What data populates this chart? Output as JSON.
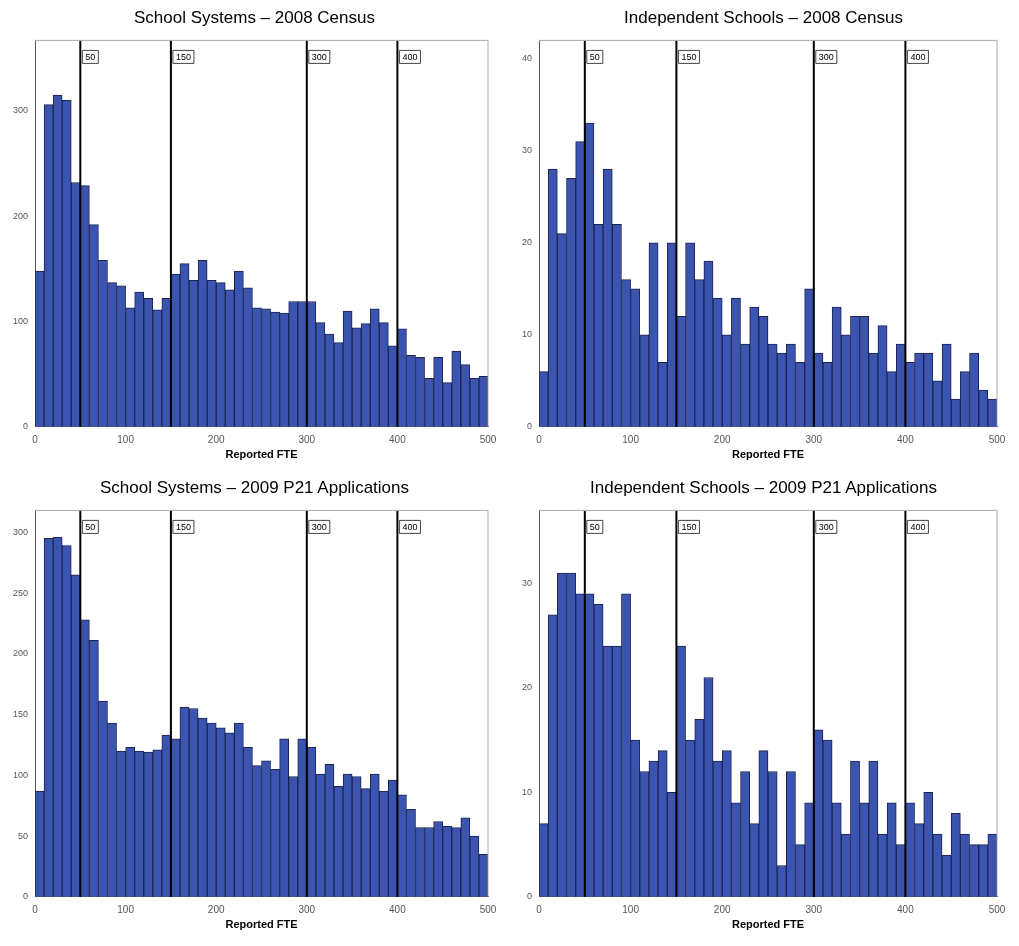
{
  "chart_data": [
    {
      "type": "histogram",
      "title": "School Systems – 2008 Census",
      "xlabel": "Reported FTE",
      "bins": [
        0,
        10,
        20,
        30,
        40,
        50,
        60,
        70,
        80,
        90,
        100,
        110,
        120,
        130,
        140,
        150,
        160,
        170,
        180,
        190,
        200,
        210,
        220,
        230,
        240,
        250,
        260,
        270,
        280,
        290,
        300,
        310,
        320,
        330,
        340,
        350,
        360,
        370,
        380,
        390,
        400,
        410,
        420,
        430,
        440,
        450,
        460,
        470,
        480,
        490,
        500
      ],
      "values": [
        148,
        306,
        315,
        310,
        232,
        229,
        192,
        158,
        137,
        134,
        113,
        128,
        122,
        111,
        122,
        145,
        155,
        139,
        158,
        139,
        137,
        130,
        148,
        132,
        113,
        112,
        109,
        108,
        119,
        119,
        119,
        99,
        88,
        80,
        110,
        94,
        98,
        112,
        99,
        77,
        93,
        68,
        66,
        46,
        66,
        42,
        72,
        59,
        46,
        48
      ],
      "color": "#3a54b0",
      "xlim": [
        0,
        500
      ],
      "xticks": [
        0,
        100,
        200,
        300,
        400,
        500
      ],
      "ylim": [
        0,
        367
      ],
      "yticks": [
        0,
        100,
        200,
        300
      ],
      "grid": false,
      "legend": false,
      "ref_lines": [
        {
          "axis": "x",
          "value": 50,
          "label": "50",
          "color": "#000000"
        },
        {
          "axis": "x",
          "value": 150,
          "label": "150",
          "color": "#000000"
        },
        {
          "axis": "x",
          "value": 300,
          "label": "300",
          "color": "#000000"
        },
        {
          "axis": "x",
          "value": 400,
          "label": "400",
          "color": "#000000"
        }
      ]
    },
    {
      "type": "histogram",
      "title": "Independent Schools – 2008 Census",
      "xlabel": "Reported FTE",
      "bins": [
        0,
        10,
        20,
        30,
        40,
        50,
        60,
        70,
        80,
        90,
        100,
        110,
        120,
        130,
        140,
        150,
        160,
        170,
        180,
        190,
        200,
        210,
        220,
        230,
        240,
        250,
        260,
        270,
        280,
        290,
        300,
        310,
        320,
        330,
        340,
        350,
        360,
        370,
        380,
        390,
        400,
        410,
        420,
        430,
        440,
        450,
        460,
        470,
        480,
        490,
        500
      ],
      "values": [
        6,
        28,
        21,
        27,
        31,
        33,
        22,
        28,
        22,
        16,
        15,
        10,
        20,
        7,
        20,
        12,
        20,
        16,
        18,
        14,
        10,
        14,
        9,
        13,
        12,
        9,
        8,
        9,
        7,
        15,
        8,
        7,
        13,
        10,
        12,
        12,
        8,
        11,
        6,
        9,
        7,
        8,
        8,
        5,
        9,
        3,
        6,
        8,
        4,
        3
      ],
      "color": "#3a54b0",
      "xlim": [
        0,
        500
      ],
      "xticks": [
        0,
        100,
        200,
        300,
        400,
        500
      ],
      "ylim": [
        0,
        42
      ],
      "yticks": [
        0,
        10,
        20,
        30,
        40
      ],
      "grid": false,
      "legend": false,
      "ref_lines": [
        {
          "axis": "x",
          "value": 50,
          "label": "50",
          "color": "#000000"
        },
        {
          "axis": "x",
          "value": 150,
          "label": "150",
          "color": "#000000"
        },
        {
          "axis": "x",
          "value": 300,
          "label": "300",
          "color": "#000000"
        },
        {
          "axis": "x",
          "value": 400,
          "label": "400",
          "color": "#000000"
        }
      ]
    },
    {
      "type": "histogram",
      "title": "School Systems – 2009 P21 Applications",
      "xlabel": "Reported FTE",
      "bins": [
        0,
        10,
        20,
        30,
        40,
        50,
        60,
        70,
        80,
        90,
        100,
        110,
        120,
        130,
        140,
        150,
        160,
        170,
        180,
        190,
        200,
        210,
        220,
        230,
        240,
        250,
        260,
        270,
        280,
        290,
        300,
        310,
        320,
        330,
        340,
        350,
        360,
        370,
        380,
        390,
        400,
        410,
        420,
        430,
        440,
        450,
        460,
        470,
        480,
        490,
        500
      ],
      "values": [
        87,
        295,
        296,
        289,
        265,
        228,
        211,
        161,
        143,
        120,
        123,
        120,
        119,
        121,
        133,
        130,
        156,
        155,
        147,
        143,
        139,
        135,
        143,
        123,
        108,
        112,
        105,
        130,
        99,
        130,
        123,
        101,
        109,
        91,
        101,
        99,
        89,
        101,
        87,
        96,
        84,
        72,
        57,
        57,
        62,
        58,
        57,
        65,
        50,
        35
      ],
      "color": "#3a54b0",
      "xlim": [
        0,
        500
      ],
      "xticks": [
        0,
        100,
        200,
        300,
        400,
        500
      ],
      "ylim": [
        0,
        318
      ],
      "yticks": [
        0,
        50,
        100,
        150,
        200,
        250,
        300
      ],
      "grid": false,
      "legend": false,
      "ref_lines": [
        {
          "axis": "x",
          "value": 50,
          "label": "50",
          "color": "#000000"
        },
        {
          "axis": "x",
          "value": 150,
          "label": "150",
          "color": "#000000"
        },
        {
          "axis": "x",
          "value": 300,
          "label": "300",
          "color": "#000000"
        },
        {
          "axis": "x",
          "value": 400,
          "label": "400",
          "color": "#000000"
        }
      ]
    },
    {
      "type": "histogram",
      "title": "Independent Schools – 2009 P21 Applications",
      "xlabel": "Reported FTE",
      "bins": [
        0,
        10,
        20,
        30,
        40,
        50,
        60,
        70,
        80,
        90,
        100,
        110,
        120,
        130,
        140,
        150,
        160,
        170,
        180,
        190,
        200,
        210,
        220,
        230,
        240,
        250,
        260,
        270,
        280,
        290,
        300,
        310,
        320,
        330,
        340,
        350,
        360,
        370,
        380,
        390,
        400,
        410,
        420,
        430,
        440,
        450,
        460,
        470,
        480,
        490,
        500
      ],
      "values": [
        7,
        27,
        31,
        31,
        29,
        29,
        28,
        24,
        24,
        29,
        15,
        12,
        13,
        14,
        10,
        24,
        15,
        17,
        21,
        13,
        14,
        9,
        12,
        7,
        14,
        12,
        3,
        12,
        5,
        9,
        16,
        15,
        9,
        6,
        13,
        9,
        13,
        6,
        9,
        5,
        9,
        7,
        10,
        6,
        4,
        8,
        6,
        5,
        5,
        6
      ],
      "color": "#3a54b0",
      "xlim": [
        0,
        500
      ],
      "xticks": [
        0,
        100,
        200,
        300,
        400,
        500
      ],
      "ylim": [
        0,
        37
      ],
      "yticks": [
        0,
        10,
        20,
        30
      ],
      "grid": false,
      "legend": false,
      "ref_lines": [
        {
          "axis": "x",
          "value": 50,
          "label": "50",
          "color": "#000000"
        },
        {
          "axis": "x",
          "value": 150,
          "label": "150",
          "color": "#000000"
        },
        {
          "axis": "x",
          "value": 300,
          "label": "300",
          "color": "#000000"
        },
        {
          "axis": "x",
          "value": 400,
          "label": "400",
          "color": "#000000"
        }
      ]
    }
  ]
}
